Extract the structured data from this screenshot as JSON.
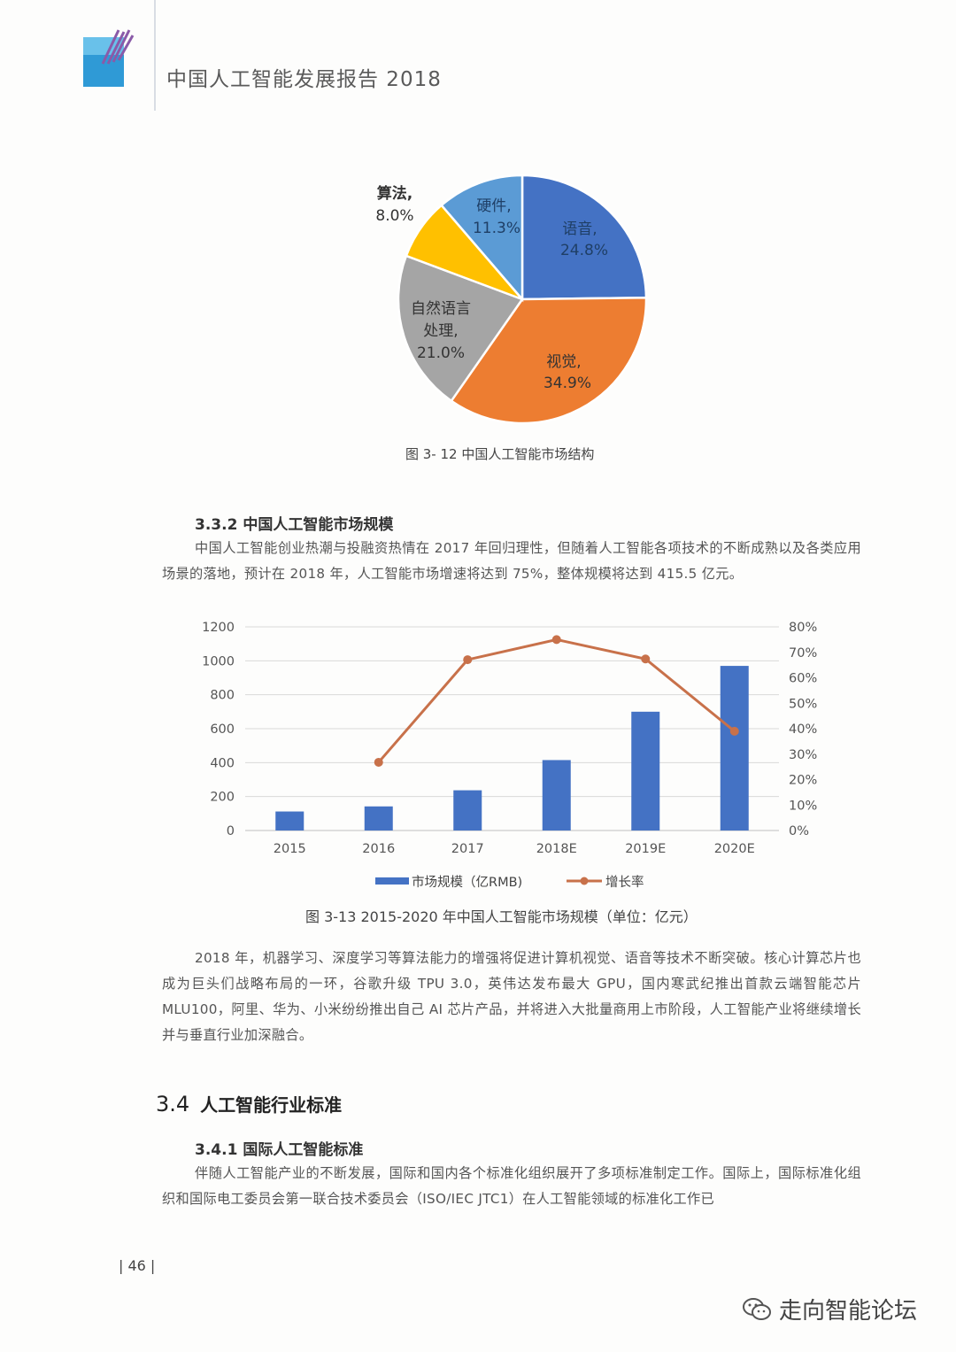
{
  "header": {
    "title": "中国人工智能发展报告 2018"
  },
  "pie_chart": {
    "caption": "图 3- 12 中国人工智能市场结构",
    "chart_data": {
      "type": "pie",
      "slices": [
        {
          "label": "语音",
          "pct": "24.8%",
          "value": 24.8,
          "color": "#4472c4"
        },
        {
          "label": "视觉",
          "pct": "34.9%",
          "value": 34.9,
          "color": "#ed7d31"
        },
        {
          "label": "自然语言处理",
          "pct": "21.0%",
          "value": 21.0,
          "color": "#a5a5a5"
        },
        {
          "label": "算法",
          "pct": "8.0%",
          "value": 8.0,
          "color": "#ffc000"
        },
        {
          "label": "硬件",
          "pct": "11.3%",
          "value": 11.3,
          "color": "#5b9bd5"
        }
      ]
    },
    "labels": {
      "yuyin": [
        "语音,",
        "24.8%"
      ],
      "shijue": [
        "视觉,",
        "34.9%"
      ],
      "nlp": [
        "自然语言",
        "处理,",
        "21.0%"
      ],
      "suanfa": [
        "算法,",
        "8.0%"
      ],
      "yingjian": [
        "硬件,",
        "11.3%"
      ]
    }
  },
  "section_332": {
    "heading": "3.3.2 中国人工智能市场规模",
    "paragraph": "中国人工智能创业热潮与投融资热情在 2017 年回归理性，但随着人工智能各项技术的不断成熟以及各类应用场景的落地，预计在 2018 年，人工智能市场增速将达到 75%，整体规模将达到 415.5 亿元。"
  },
  "combo_chart": {
    "caption": "图 3-13 2015-2020 年中国人工智能市场规模（单位：亿元）",
    "chart_data": {
      "type": "bar",
      "categories": [
        "2015",
        "2016",
        "2017",
        "2018E",
        "2019E",
        "2020E"
      ],
      "series": [
        {
          "name": "市场规模（亿RMB)",
          "type": "bar",
          "axis": "left",
          "color": "#4472c4",
          "values": [
            112,
            142,
            237,
            415,
            700,
            970
          ]
        },
        {
          "name": "增长率",
          "type": "line",
          "axis": "right",
          "color": "#c8714a",
          "values": [
            null,
            26.8,
            67.1,
            75.0,
            67.4,
            39.0
          ]
        }
      ],
      "y_left": {
        "ticks": [
          "0",
          "200",
          "400",
          "600",
          "800",
          "1000",
          "1200"
        ],
        "min": 0,
        "max": 1200
      },
      "y_right": {
        "ticks": [
          "0%",
          "10%",
          "20%",
          "30%",
          "40%",
          "50%",
          "60%",
          "70%",
          "80%"
        ],
        "min": 0,
        "max": 80
      },
      "legend_position": "bottom",
      "grid": true
    }
  },
  "paragraph_2018": "2018 年，机器学习、深度学习等算法能力的增强将促进计算机视觉、语音等技术不断突破。核心计算芯片也成为巨头们战略布局的一环，谷歌升级 TPU 3.0，英伟达发布最大 GPU，国内寒武纪推出首款云端智能芯片 MLU100，阿里、华为、小米纷纷推出自己 AI 芯片产品，并将进入大批量商用上市阶段，人工智能产业将继续增长并与垂直行业加深融合。",
  "section_34": {
    "number": "3.4",
    "title": "人工智能行业标准"
  },
  "section_341": {
    "heading": "3.4.1 国际人工智能标准",
    "paragraph": "伴随人工智能产业的不断发展，国际和国内各个标准化组织展开了多项标准制定工作。国际上，国际标准化组织和国际电工委员会第一联合技术委员会（ISO/IEC JTC1）在人工智能领域的标准化工作已"
  },
  "footer": {
    "page_number": "| 46 |",
    "watermark": "走向智能论坛"
  }
}
